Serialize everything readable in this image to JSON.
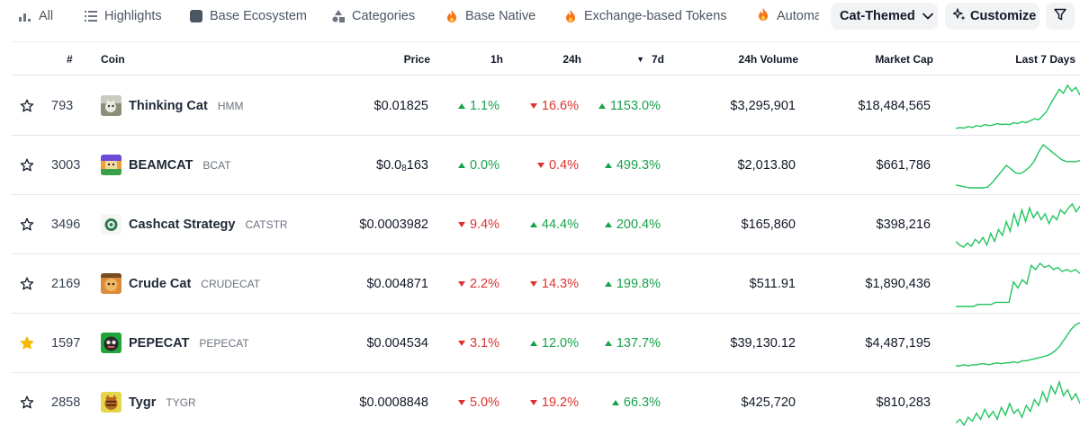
{
  "filter_tabs": [
    {
      "label": "All",
      "icon": "bar-chart-icon"
    },
    {
      "label": "Highlights",
      "icon": "list-icon"
    },
    {
      "label": "Base Ecosystem",
      "icon": "base-logo-icon"
    },
    {
      "label": "Categories",
      "icon": "shapes-icon"
    },
    {
      "label": "Base Native",
      "icon": "flame-icon"
    },
    {
      "label": "Exchange-based Tokens",
      "icon": "flame-icon"
    },
    {
      "label": "Automa",
      "icon": "flame-icon"
    }
  ],
  "category_select": {
    "label": "Cat-Themed"
  },
  "customize_button": {
    "label": "Customize"
  },
  "table": {
    "headers": {
      "rank": "#",
      "coin": "Coin",
      "price": "Price",
      "h1": "1h",
      "h24": "24h",
      "d7": "7d",
      "volume": "24h Volume",
      "mcap": "Market Cap",
      "spark": "Last 7 Days"
    },
    "sort_indicator": "▼",
    "rows": [
      {
        "favorite": false,
        "rank": "793",
        "name": "Thinking Cat",
        "symbol": "HMM",
        "price": "$0.01825",
        "h1": {
          "value": "1.1%",
          "dir": "up"
        },
        "h24": {
          "value": "16.6%",
          "dir": "down"
        },
        "d7": {
          "value": "1153.0%",
          "dir": "up"
        },
        "volume": "$3,295,901",
        "mcap": "$18,484,565",
        "spark": [
          2,
          3,
          2.5,
          4,
          3,
          5,
          4,
          6,
          5,
          5.5,
          7,
          6,
          6.5,
          6,
          8,
          7,
          9,
          8,
          10,
          12,
          11,
          15,
          20,
          28,
          35,
          42,
          38,
          46,
          40,
          44,
          36
        ]
      },
      {
        "favorite": false,
        "rank": "3003",
        "name": "BEAMCAT",
        "symbol": "BCAT",
        "price_prefix": "$0.0",
        "price_sub": "8",
        "price_suffix": "163",
        "h1": {
          "value": "0.0%",
          "dir": "up"
        },
        "h24": {
          "value": "0.4%",
          "dir": "down"
        },
        "d7": {
          "value": "499.3%",
          "dir": "up"
        },
        "volume": "$2,013.80",
        "mcap": "$661,786",
        "spark": [
          5,
          4,
          3,
          2,
          2,
          2,
          2,
          3,
          8,
          14,
          20,
          26,
          22,
          18,
          17,
          20,
          24,
          30,
          40,
          48,
          44,
          40,
          36,
          32,
          30,
          30,
          30,
          31
        ]
      },
      {
        "favorite": false,
        "rank": "3496",
        "name": "Cashcat Strategy",
        "symbol": "CATSTR",
        "price": "$0.0003982",
        "h1": {
          "value": "9.4%",
          "dir": "down"
        },
        "h24": {
          "value": "44.4%",
          "dir": "up"
        },
        "d7": {
          "value": "200.4%",
          "dir": "up"
        },
        "volume": "$165,860",
        "mcap": "$398,216",
        "spark": [
          8,
          4,
          2,
          6,
          3,
          10,
          6,
          12,
          4,
          16,
          8,
          20,
          14,
          28,
          18,
          36,
          24,
          40,
          28,
          42,
          32,
          38,
          30,
          36,
          26,
          34,
          30,
          40,
          36,
          42,
          46,
          38,
          44
        ]
      },
      {
        "favorite": false,
        "rank": "2169",
        "name": "Crude Cat",
        "symbol": "CRUDECAT",
        "price": "$0.004871",
        "h1": {
          "value": "2.2%",
          "dir": "down"
        },
        "h24": {
          "value": "14.3%",
          "dir": "down"
        },
        "d7": {
          "value": "199.8%",
          "dir": "up"
        },
        "volume": "$511.91",
        "mcap": "$1,890,436",
        "spark": [
          4,
          4,
          4,
          4,
          4,
          6,
          6,
          6,
          6,
          8,
          8,
          8,
          8,
          28,
          22,
          30,
          26,
          44,
          40,
          46,
          42,
          44,
          40,
          42,
          38,
          40,
          38,
          40,
          36
        ]
      },
      {
        "favorite": true,
        "rank": "1597",
        "name": "PEPECAT",
        "symbol": "PEPECAT",
        "price": "$0.004534",
        "h1": {
          "value": "3.1%",
          "dir": "down"
        },
        "h24": {
          "value": "12.0%",
          "dir": "up"
        },
        "d7": {
          "value": "137.7%",
          "dir": "up"
        },
        "volume": "$39,130.12",
        "mcap": "$4,487,195",
        "spark": [
          3,
          3,
          4,
          3,
          4,
          4,
          5,
          5,
          4,
          5,
          6,
          5,
          6,
          6,
          7,
          6,
          8,
          8,
          9,
          10,
          11,
          12,
          13,
          15,
          18,
          22,
          28,
          34,
          40,
          44,
          46
        ]
      },
      {
        "favorite": false,
        "rank": "2858",
        "name": "Tygr",
        "symbol": "TYGR",
        "price": "$0.0008848",
        "h1": {
          "value": "5.0%",
          "dir": "down"
        },
        "h24": {
          "value": "19.2%",
          "dir": "down"
        },
        "d7": {
          "value": "66.3%",
          "dir": "up"
        },
        "volume": "$425,720",
        "mcap": "$810,283",
        "spark": [
          6,
          10,
          4,
          12,
          8,
          16,
          10,
          20,
          12,
          18,
          10,
          22,
          14,
          26,
          16,
          20,
          12,
          24,
          18,
          30,
          24,
          38,
          28,
          44,
          36,
          48,
          34,
          40,
          30,
          36,
          26
        ]
      }
    ]
  },
  "colors": {
    "up": "#16a34a",
    "down": "#e03131",
    "spark": "#22c55e",
    "star_filled": "#f5b800"
  }
}
